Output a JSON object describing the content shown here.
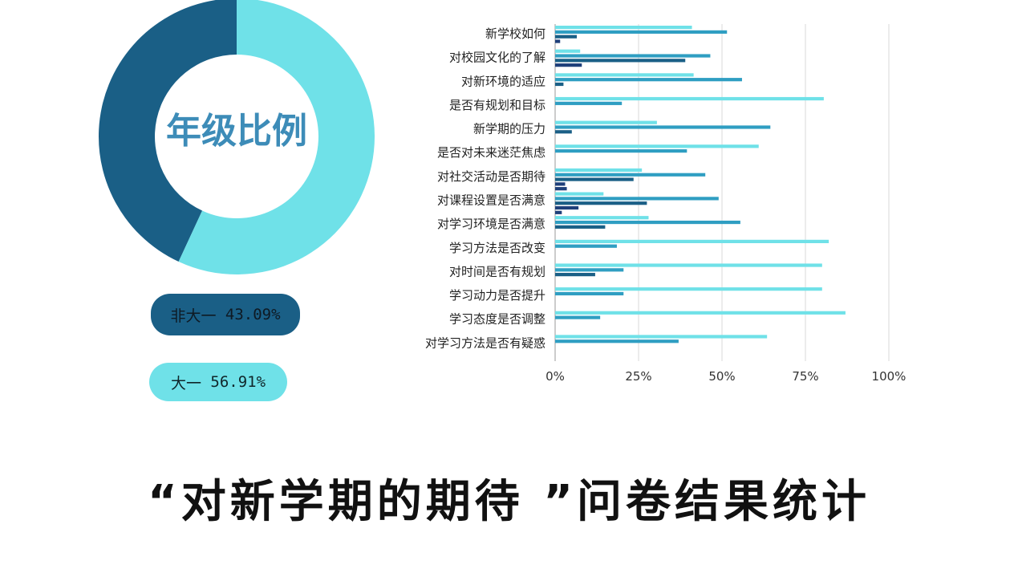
{
  "title": "“对新学期的期待 ”问卷结果统计",
  "colors": {
    "light": "#6fe1e8",
    "mid": "#2f9ec2",
    "dark": "#1a5f86",
    "navy": "#1e3f7a",
    "donut_title": "#3d8cb8"
  },
  "chart_data": [
    {
      "type": "pie",
      "title": "年级比例",
      "slices": [
        {
          "label": "非大一",
          "value": 43.09,
          "value_label": "43.09%",
          "color": "#1a5f86"
        },
        {
          "label": "大一",
          "value": 56.91,
          "value_label": "56.91%",
          "color": "#6fe1e8"
        }
      ]
    },
    {
      "type": "bar",
      "orientation": "horizontal",
      "categories": [
        "新学校如何",
        "对校园文化的了解",
        "对新环境的适应",
        "是否有规划和目标",
        "新学期的压力",
        "是否对未来迷茫焦虑",
        "对社交活动是否期待",
        "对课程设置是否满意",
        "对学习环境是否满意",
        "学习方法是否改变",
        "对时间是否有规划",
        "学习动力是否提升",
        "学习态度是否调整",
        "对学习方法是否有疑惑"
      ],
      "series": [
        {
          "color": "#6fe1e8",
          "values": [
            41,
            7.5,
            41.5,
            80.5,
            30.5,
            61,
            26,
            14.5,
            28,
            82,
            80,
            80,
            87,
            63.5
          ]
        },
        {
          "color": "#2f9ec2",
          "values": [
            51.5,
            46.5,
            56,
            20,
            64.5,
            39.5,
            45,
            49,
            55.5,
            18.5,
            20.5,
            20.5,
            13.5,
            37
          ]
        },
        {
          "color": "#1a5f86",
          "values": [
            6.5,
            39,
            2.5,
            0,
            5,
            0,
            23.5,
            27.5,
            15,
            0,
            12,
            0,
            0,
            0
          ]
        },
        {
          "color": "#1e3f7a",
          "values": [
            1.5,
            8,
            0,
            0,
            0,
            0,
            3,
            7,
            0,
            0,
            0,
            0,
            0,
            0
          ]
        },
        {
          "color": "#1e3f7a",
          "values": [
            0,
            0,
            0,
            0,
            0,
            0,
            3.5,
            2,
            0,
            0,
            0,
            0,
            0,
            0
          ]
        }
      ],
      "xlim": [
        0,
        100
      ],
      "x_ticks": [
        "0%",
        "25%",
        "50%",
        "75%",
        "100%"
      ],
      "grid": true
    }
  ]
}
